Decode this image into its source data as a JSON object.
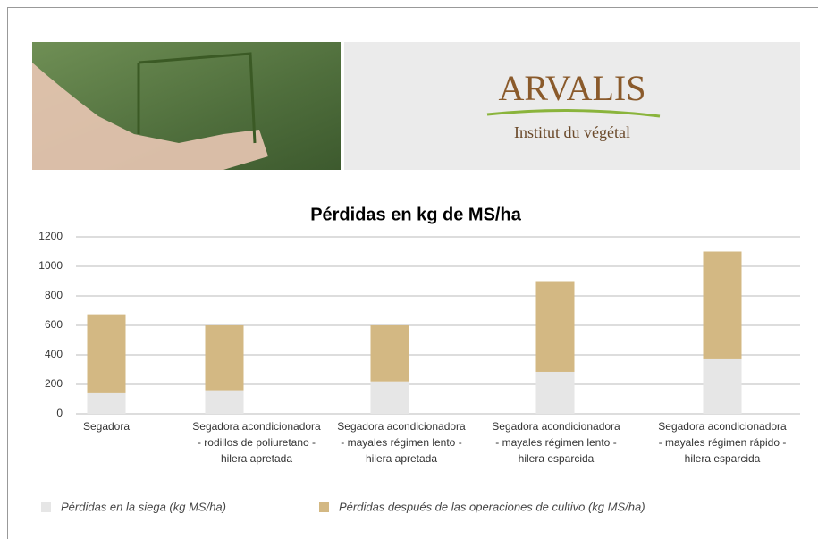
{
  "logo": {
    "name": "ARVALIS",
    "tagline": "Institut du végétal"
  },
  "chart_data": {
    "type": "stacked-bar",
    "title": "Pérdidas en kg de MS/ha",
    "categories": [
      [
        "Segadora"
      ],
      [
        "Segadora acondicionadora",
        "- rodillos de poliuretano -",
        "hilera apretada"
      ],
      [
        "Segadora acondicionadora",
        "- mayales régimen lento -",
        "hilera apretada"
      ],
      [
        "Segadora acondicionadora",
        "- mayales régimen lento -",
        "hilera esparcida"
      ],
      [
        "Segadora acondicionadora",
        "- mayales régimen rápido -",
        "hilera esparcida"
      ]
    ],
    "series": [
      {
        "name": "Pérdidas en la siega (kg MS/ha)",
        "color": "#e6e6e6",
        "values": [
          140,
          160,
          220,
          285,
          370
        ]
      },
      {
        "name": "Pérdidas después de las operaciones de cultivo (kg MS/ha)",
        "color": "#d3b883",
        "values": [
          535,
          440,
          380,
          615,
          730
        ]
      }
    ],
    "ylim": [
      0,
      1200
    ],
    "yticks": [
      0,
      200,
      400,
      600,
      800,
      1000,
      1200
    ],
    "grid": true,
    "legend": "bottom"
  }
}
